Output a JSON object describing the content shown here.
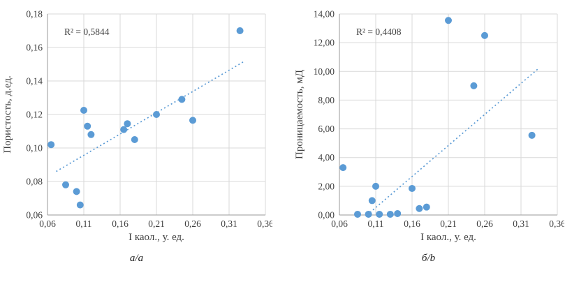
{
  "figure": {
    "left_caption": "а/a",
    "right_caption": "б/b"
  },
  "chart_data": [
    {
      "type": "scatter",
      "name": "porosity-vs-kaolinite-chart",
      "title": "",
      "r2_label": "R² = 0,5844",
      "xlabel": "I каол., у. ед.",
      "ylabel": "Пористость, д.ед.",
      "xlim": [
        0.06,
        0.36
      ],
      "ylim": [
        0.06,
        0.18
      ],
      "xticks": [
        "0,06",
        "0,11",
        "0,16",
        "0,21",
        "0,26",
        "0,31",
        "0,36"
      ],
      "yticks": [
        "0,06",
        "0,08",
        "0,10",
        "0,12",
        "0,14",
        "0,16",
        "0,18"
      ],
      "grid": true,
      "legend": "none",
      "color": "#5B9BD5",
      "points": [
        [
          0.065,
          0.102
        ],
        [
          0.085,
          0.078
        ],
        [
          0.1,
          0.074
        ],
        [
          0.105,
          0.066
        ],
        [
          0.11,
          0.1225
        ],
        [
          0.115,
          0.113
        ],
        [
          0.12,
          0.108
        ],
        [
          0.165,
          0.111
        ],
        [
          0.17,
          0.1145
        ],
        [
          0.18,
          0.105
        ],
        [
          0.21,
          0.12
        ],
        [
          0.245,
          0.129
        ],
        [
          0.26,
          0.1165
        ],
        [
          0.325,
          0.17
        ]
      ],
      "trendline": {
        "style": "dotted",
        "x1": 0.072,
        "y1": 0.086,
        "x2": 0.332,
        "y2": 0.152
      },
      "caption": "а/a"
    },
    {
      "type": "scatter",
      "name": "permeability-vs-kaolinite-chart",
      "title": "",
      "r2_label": "R² = 0,4408",
      "xlabel": "I каол., у. ед.",
      "ylabel": "Проницаемость, мД",
      "xlim": [
        0.06,
        0.36
      ],
      "ylim": [
        0,
        14
      ],
      "xticks": [
        "0,06",
        "0,11",
        "0,16",
        "0,21",
        "0,26",
        "0,31",
        "0,36"
      ],
      "yticks": [
        "0,00",
        "2,00",
        "4,00",
        "6,00",
        "8,00",
        "10,00",
        "12,00",
        "14,00"
      ],
      "grid": true,
      "legend": "none",
      "color": "#5B9BD5",
      "points": [
        [
          0.065,
          3.3
        ],
        [
          0.085,
          0.05
        ],
        [
          0.1,
          0.05
        ],
        [
          0.105,
          1.0
        ],
        [
          0.11,
          2.0
        ],
        [
          0.115,
          0.05
        ],
        [
          0.13,
          0.05
        ],
        [
          0.14,
          0.1
        ],
        [
          0.16,
          1.85
        ],
        [
          0.17,
          0.45
        ],
        [
          0.18,
          0.55
        ],
        [
          0.21,
          13.55
        ],
        [
          0.245,
          9.0
        ],
        [
          0.26,
          12.5
        ],
        [
          0.325,
          5.55
        ]
      ],
      "trendline": {
        "style": "dotted",
        "x1": 0.098,
        "y1": 0.0,
        "x2": 0.334,
        "y2": 10.2
      },
      "caption": "б/b"
    }
  ]
}
